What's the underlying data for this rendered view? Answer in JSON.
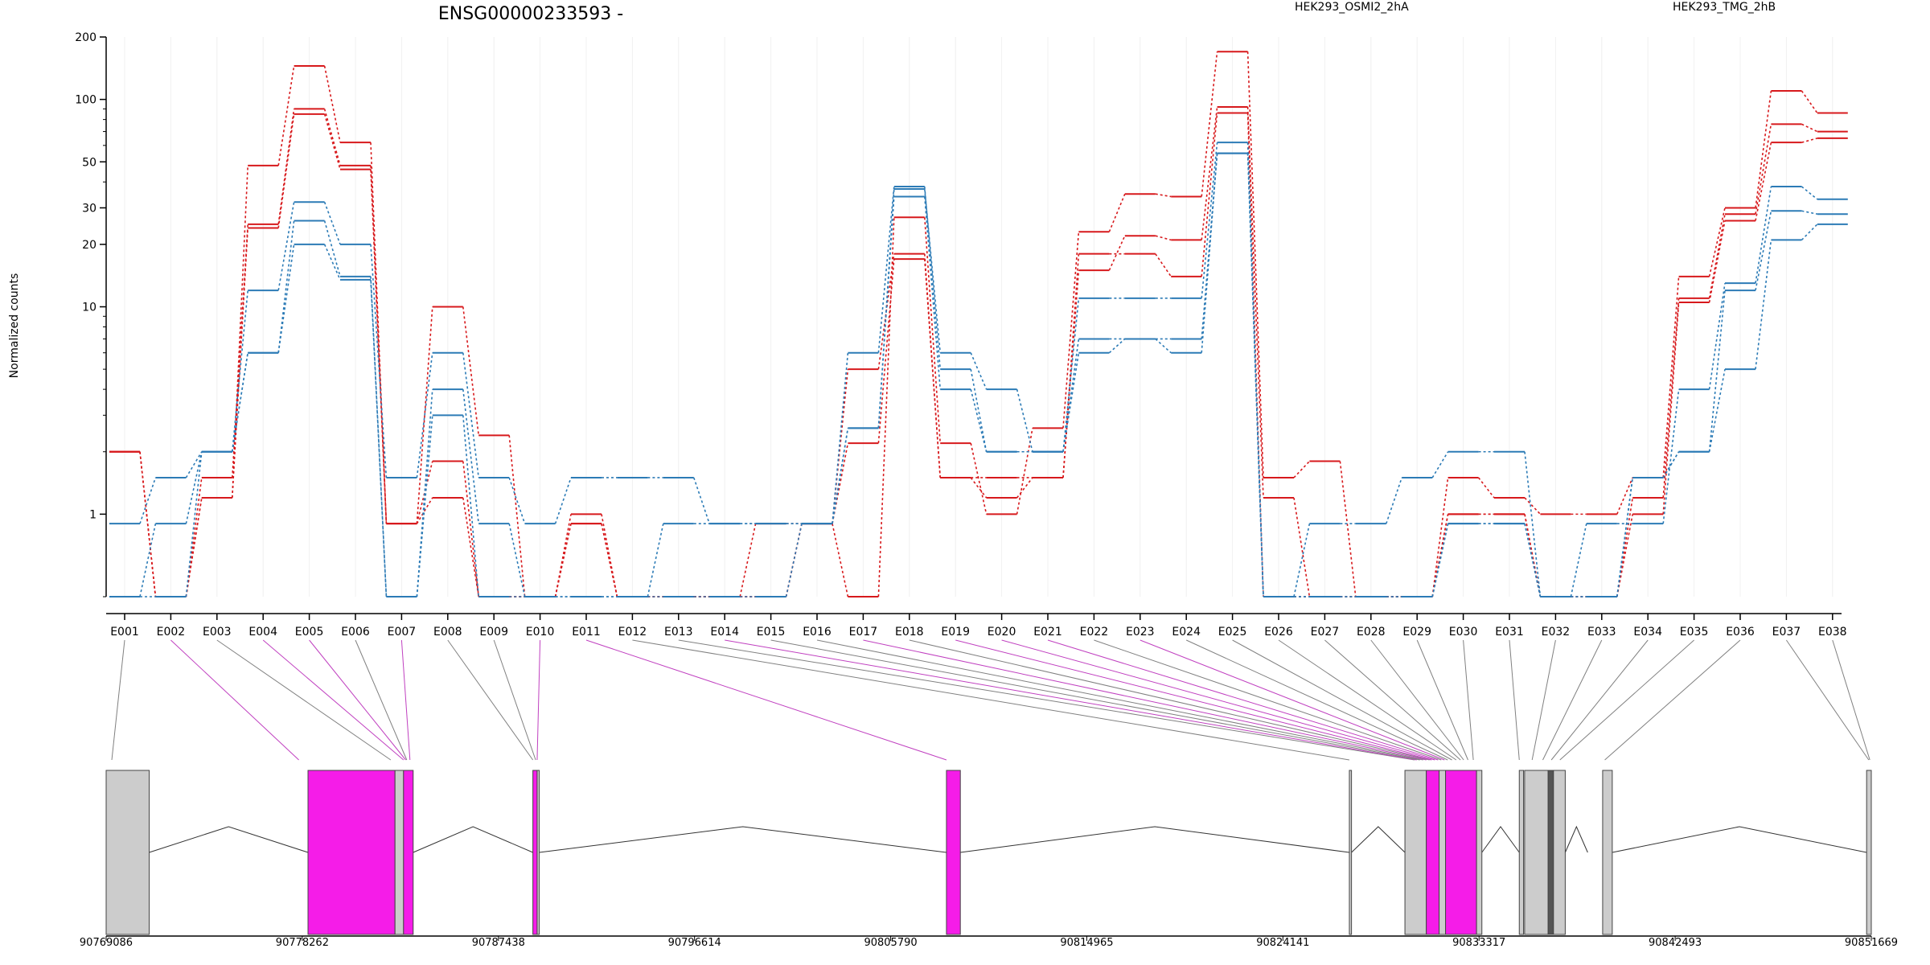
{
  "title": "ENSG00000233593 -",
  "ylabel": "Normalized counts",
  "legend": [
    {
      "name": "HEK293_OSMI2_2hA",
      "color": "#d7191c"
    },
    {
      "name": "HEK293_TMG_2hB",
      "color": "#2c7bb6"
    }
  ],
  "chart_data": {
    "type": "line",
    "y_scale": "log",
    "ylim": [
      0.4,
      200
    ],
    "y_ticks": [
      "200",
      "100",
      "50",
      "30",
      "20",
      "10",
      "1"
    ],
    "y_tick_values": [
      200,
      100,
      50,
      30,
      20,
      10,
      1
    ],
    "categories": [
      "E001",
      "E002",
      "E003",
      "E004",
      "E005",
      "E006",
      "E007",
      "E008",
      "E009",
      "E010",
      "E011",
      "E012",
      "E013",
      "E014",
      "E015",
      "E016",
      "E017",
      "E018",
      "E019",
      "E020",
      "E021",
      "E022",
      "E023",
      "E024",
      "E025",
      "E026",
      "E027",
      "E028",
      "E029",
      "E030",
      "E031",
      "E032",
      "E033",
      "E034",
      "E035",
      "E036",
      "E037",
      "E038"
    ],
    "series": [
      {
        "group": 0,
        "values": [
          2,
          0.4,
          1.2,
          48,
          145,
          62,
          0.9,
          10,
          2.4,
          0.4,
          1,
          0.4,
          0.4,
          0.4,
          0.9,
          0.9,
          0.4,
          27,
          2.2,
          1,
          2.6,
          23,
          35,
          34,
          170,
          1.5,
          1.8,
          0.4,
          0.4,
          1.5,
          1.2,
          1,
          1,
          1.5,
          14,
          30,
          110,
          86
        ]
      },
      {
        "group": 0,
        "values": [
          2,
          0.4,
          1.5,
          25,
          90,
          48,
          0.9,
          1.8,
          0.4,
          0.4,
          0.9,
          0.4,
          0.4,
          0.4,
          0.4,
          0.9,
          5,
          18,
          1.5,
          1.2,
          1.5,
          15,
          22,
          21,
          92,
          1.2,
          0.4,
          0.4,
          0.4,
          1,
          1,
          0.4,
          0.4,
          1.2,
          11,
          28,
          76,
          70
        ]
      },
      {
        "group": 0,
        "values": [
          2,
          0.4,
          1.2,
          24,
          85,
          46,
          0.9,
          1.2,
          0.4,
          0.4,
          0.9,
          0.4,
          0.4,
          0.4,
          0.4,
          0.9,
          2.2,
          17,
          1.5,
          1.5,
          1.5,
          18,
          18,
          14,
          86,
          0.4,
          0.4,
          0.4,
          0.4,
          1,
          1,
          0.4,
          0.4,
          1,
          10.5,
          26,
          62,
          65
        ]
      },
      {
        "group": 1,
        "values": [
          0.9,
          1.5,
          2,
          12,
          32,
          20,
          1.5,
          6,
          1.5,
          0.9,
          1.5,
          1.5,
          1.5,
          0.9,
          0.9,
          0.9,
          2.6,
          37,
          6,
          4,
          2,
          11,
          11,
          11,
          62,
          0.4,
          0.9,
          0.9,
          1.5,
          2,
          2,
          0.4,
          0.9,
          0.9,
          4,
          13,
          38,
          33
        ]
      },
      {
        "group": 1,
        "values": [
          0.4,
          0.9,
          2,
          6,
          26,
          14,
          0.4,
          4,
          0.9,
          0.4,
          0.4,
          0.4,
          0.9,
          0.9,
          0.9,
          0.9,
          6,
          38,
          5,
          2,
          2,
          7,
          7,
          7,
          55,
          0.4,
          0.4,
          0.4,
          0.4,
          0.9,
          0.9,
          0.4,
          0.4,
          1.5,
          2,
          12,
          29,
          28
        ]
      },
      {
        "group": 1,
        "values": [
          0.4,
          0.4,
          2,
          6,
          20,
          13.5,
          0.4,
          3,
          0.4,
          0.4,
          0.4,
          0.4,
          0.4,
          0.4,
          0.4,
          0.9,
          2.6,
          34,
          4,
          2,
          2,
          6,
          7,
          6,
          55,
          0.4,
          0.4,
          0.4,
          0.4,
          0.9,
          0.9,
          0.4,
          0.4,
          1.5,
          2,
          5,
          21,
          25
        ]
      }
    ]
  },
  "gene_model": {
    "coordinates": [
      "90769086",
      "90778262",
      "90787438",
      "90796614",
      "90805790",
      "90814965",
      "90824141",
      "90833317",
      "90842493",
      "90851669"
    ],
    "exon_blocks": [
      {
        "start": 90769086,
        "end": 90771100,
        "fill": "#cccccc"
      },
      {
        "start": 90778530,
        "end": 90782600,
        "fill": "#f51ce8"
      },
      {
        "start": 90782600,
        "end": 90783000,
        "fill": "#cccccc"
      },
      {
        "start": 90783000,
        "end": 90783450,
        "fill": "#f51ce8"
      },
      {
        "start": 90789050,
        "end": 90789250,
        "fill": "#f51ce8"
      },
      {
        "start": 90789250,
        "end": 90789350,
        "fill": "#cccccc"
      },
      {
        "start": 90808400,
        "end": 90809050,
        "fill": "#f51ce8"
      },
      {
        "start": 90827250,
        "end": 90827350,
        "fill": "#cccccc"
      },
      {
        "start": 90829850,
        "end": 90830850,
        "fill": "#cccccc"
      },
      {
        "start": 90830850,
        "end": 90831450,
        "fill": "#f51ce8"
      },
      {
        "start": 90831450,
        "end": 90831750,
        "fill": "#cccccc"
      },
      {
        "start": 90831750,
        "end": 90833200,
        "fill": "#f51ce8"
      },
      {
        "start": 90833200,
        "end": 90833450,
        "fill": "#cccccc"
      },
      {
        "start": 90835200,
        "end": 90835400,
        "fill": "#cccccc"
      },
      {
        "start": 90835450,
        "end": 90836550,
        "fill": "#cccccc"
      },
      {
        "start": 90836550,
        "end": 90836800,
        "fill": "#555555"
      },
      {
        "start": 90836800,
        "end": 90837350,
        "fill": "#cccccc"
      },
      {
        "start": 90839100,
        "end": 90839550,
        "fill": "#cccccc"
      },
      {
        "start": 90851450,
        "end": 90851669,
        "fill": "#cccccc"
      }
    ],
    "introns": [
      [
        90771100,
        90778530
      ],
      [
        90783450,
        90789050
      ],
      [
        90789350,
        90808400
      ],
      [
        90809050,
        90827250
      ],
      [
        90827350,
        90829850
      ],
      [
        90833450,
        90835200
      ],
      [
        90837350,
        90838400
      ],
      [
        90839550,
        90851450
      ]
    ],
    "exon_anchors": [
      90769350,
      90778100,
      90782400,
      90783000,
      90783100,
      90783150,
      90783300,
      90789050,
      90789180,
      90789250,
      90808400,
      90827250,
      90830300,
      90830400,
      90830550,
      90830700,
      90830850,
      90831000,
      90831100,
      90831250,
      90831400,
      90831550,
      90831700,
      90831850,
      90832050,
      90832250,
      90832450,
      90832600,
      90832800,
      90833050,
      90835200,
      90835800,
      90836300,
      90836700,
      90837100,
      90839200,
      90851550,
      90851600
    ],
    "anchor_colors": [
      "#808080",
      "#c040c0",
      "#808080",
      "#c040c0",
      "#c040c0",
      "#808080",
      "#c040c0",
      "#808080",
      "#808080",
      "#c040c0",
      "#c040c0",
      "#808080",
      "#808080",
      "#c040c0",
      "#808080",
      "#808080",
      "#c040c0",
      "#808080",
      "#c040c0",
      "#c040c0",
      "#c040c0",
      "#808080",
      "#c040c0",
      "#808080",
      "#808080",
      "#808080",
      "#808080",
      "#808080",
      "#808080",
      "#808080",
      "#808080",
      "#808080",
      "#808080",
      "#808080",
      "#808080",
      "#808080",
      "#808080",
      "#808080"
    ]
  }
}
